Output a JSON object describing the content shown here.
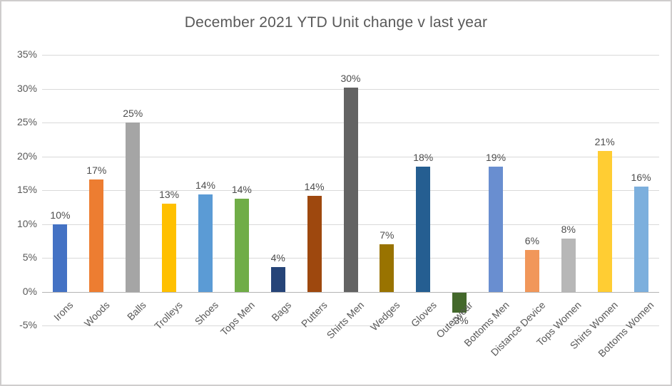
{
  "title": "December 2021 YTD Unit change v last year",
  "colors": {
    "background": "#FFFFFF",
    "border": "#CFCDCD",
    "title_text": "#595959",
    "axis_label": "#595959",
    "data_label": "#4D4D4D",
    "gridline": "#D9D9D9",
    "zero_axis_line": "#B4B4B4"
  },
  "chart_data": {
    "type": "bar",
    "title": "December 2021 YTD Unit change v last year",
    "xlabel": "",
    "ylabel": "",
    "grid": true,
    "legend": false,
    "ylim": [
      -5,
      35
    ],
    "ytick_step": 5,
    "ytick_labels": [
      "35%",
      "30%",
      "25%",
      "20%",
      "15%",
      "10%",
      "5%",
      "0%",
      "-5%"
    ],
    "categories": [
      "Irons",
      "Woods",
      "Balls",
      "Trolleys",
      "Shoes",
      "Tops Men",
      "Bags",
      "Putters",
      "Shirts Men",
      "Wedges",
      "Gloves",
      "Outerwear",
      "Bottoms Men",
      "Distance Device",
      "Tops Women",
      "Shirts Women",
      "Bottoms Women"
    ],
    "values": [
      10.0,
      16.6,
      25.0,
      13.0,
      14.4,
      13.8,
      3.7,
      14.2,
      30.2,
      7.0,
      18.5,
      -3.0,
      18.5,
      6.2,
      7.9,
      20.8,
      15.5
    ],
    "labels": [
      "10%",
      "17%",
      "25%",
      "13%",
      "14%",
      "14%",
      "4%",
      "14%",
      "30%",
      "7%",
      "18%",
      "-3%",
      "19%",
      "6%",
      "8%",
      "21%",
      "16%"
    ],
    "bar_colors": [
      "#4472C4",
      "#ED7D31",
      "#A5A5A5",
      "#FFC000",
      "#5B9BD5",
      "#70AD47",
      "#264478",
      "#9E480E",
      "#636363",
      "#997300",
      "#255E91",
      "#43682B",
      "#698ED0",
      "#F1975A",
      "#B7B7B7",
      "#FFCD33",
      "#7CAFDD"
    ]
  }
}
